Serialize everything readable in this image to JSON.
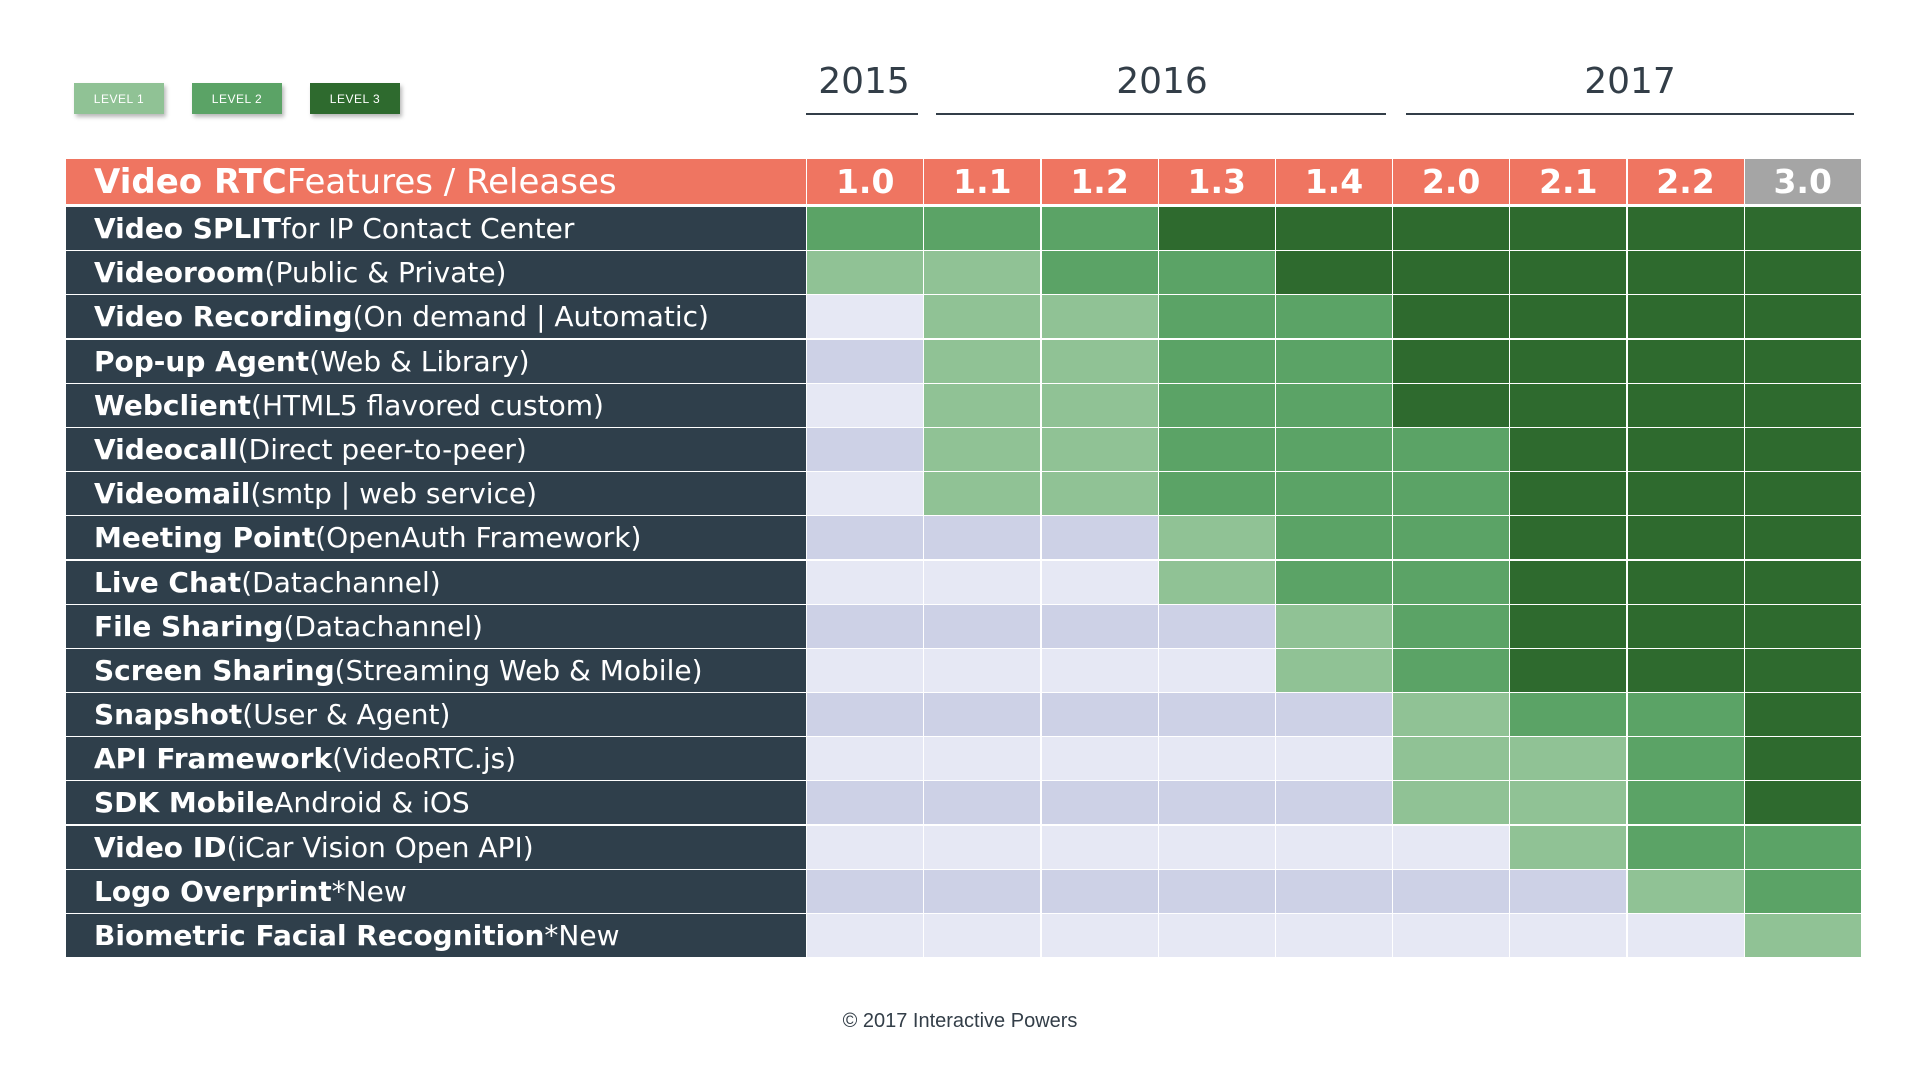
{
  "legend": [
    "LEVEL 1",
    "LEVEL 2",
    "LEVEL 3"
  ],
  "years": [
    "2015",
    "2016",
    "2017"
  ],
  "header": {
    "title_bold": "Video RTC",
    "title_rest": " Features / Releases"
  },
  "footer": "© 2017 Interactive Powers",
  "colors": {
    "header": "#ef7561",
    "label_bg": "#2f3f4b",
    "level_0_light": "#e6e8f4",
    "level_0_dark": "#cdd1e6",
    "level_1": "#90c295",
    "level_2": "#5ba366",
    "level_3": "#2e6a2e",
    "future_release": "#a5a5a5"
  },
  "chart_data": {
    "type": "heatmap",
    "title": "Video RTC Features / Releases",
    "categories": [
      "1.0",
      "1.1",
      "1.2",
      "1.3",
      "1.4",
      "2.0",
      "2.1",
      "2.2",
      "3.0"
    ],
    "rows": [
      {
        "bold": "Video SPLIT",
        "rest": " for IP Contact Center",
        "levels": [
          2,
          2,
          2,
          3,
          3,
          3,
          3,
          3,
          3
        ]
      },
      {
        "bold": "Videoroom",
        "rest": "(Public & Private)",
        "levels": [
          1,
          1,
          2,
          2,
          3,
          3,
          3,
          3,
          3
        ]
      },
      {
        "bold": "Video Recording",
        "rest": " (On demand | Automatic)",
        "levels": [
          0,
          1,
          1,
          2,
          2,
          3,
          3,
          3,
          3
        ]
      },
      {
        "bold": "Pop-up Agent",
        "rest": " (Web & Library)",
        "levels": [
          0,
          1,
          1,
          2,
          2,
          3,
          3,
          3,
          3
        ]
      },
      {
        "bold": "Webclient",
        "rest": " (HTML5 flavored custom)",
        "levels": [
          0,
          1,
          1,
          2,
          2,
          3,
          3,
          3,
          3
        ]
      },
      {
        "bold": "Videocall",
        "rest": " (Direct peer-to-peer)",
        "levels": [
          0,
          1,
          1,
          2,
          2,
          2,
          3,
          3,
          3
        ]
      },
      {
        "bold": "Videomail",
        "rest": " (smtp | web service)",
        "levels": [
          0,
          1,
          1,
          2,
          2,
          2,
          3,
          3,
          3
        ]
      },
      {
        "bold": "Meeting Point",
        "rest": " (OpenAuth Framework)",
        "levels": [
          0,
          0,
          0,
          1,
          2,
          2,
          3,
          3,
          3
        ]
      },
      {
        "bold": "Live Chat",
        "rest": " (Datachannel)",
        "levels": [
          0,
          0,
          0,
          1,
          2,
          2,
          3,
          3,
          3
        ]
      },
      {
        "bold": "File Sharing",
        "rest": " (Datachannel)",
        "levels": [
          0,
          0,
          0,
          0,
          1,
          2,
          3,
          3,
          3
        ]
      },
      {
        "bold": "Screen Sharing",
        "rest": " (Streaming Web & Mobile)",
        "levels": [
          0,
          0,
          0,
          0,
          1,
          2,
          3,
          3,
          3
        ]
      },
      {
        "bold": "Snapshot",
        "rest": " (User & Agent)",
        "levels": [
          0,
          0,
          0,
          0,
          0,
          1,
          2,
          2,
          3
        ]
      },
      {
        "bold": "API Framework",
        "rest": " (VideoRTC.js)",
        "levels": [
          0,
          0,
          0,
          0,
          0,
          1,
          1,
          2,
          3
        ]
      },
      {
        "bold": "SDK Mobile",
        "rest": " Android & iOS",
        "levels": [
          0,
          0,
          0,
          0,
          0,
          1,
          1,
          2,
          3
        ]
      },
      {
        "bold": "Video ID",
        "rest": " (iCar Vision Open API)",
        "levels": [
          0,
          0,
          0,
          0,
          0,
          0,
          1,
          2,
          2
        ]
      },
      {
        "bold": "Logo Overprint",
        "rest": " *New",
        "levels": [
          0,
          0,
          0,
          0,
          0,
          0,
          0,
          1,
          2
        ]
      },
      {
        "bold": "Biometric Facial Recognition",
        "rest": " *New",
        "levels": [
          0,
          0,
          0,
          0,
          0,
          0,
          0,
          0,
          1
        ]
      }
    ]
  }
}
